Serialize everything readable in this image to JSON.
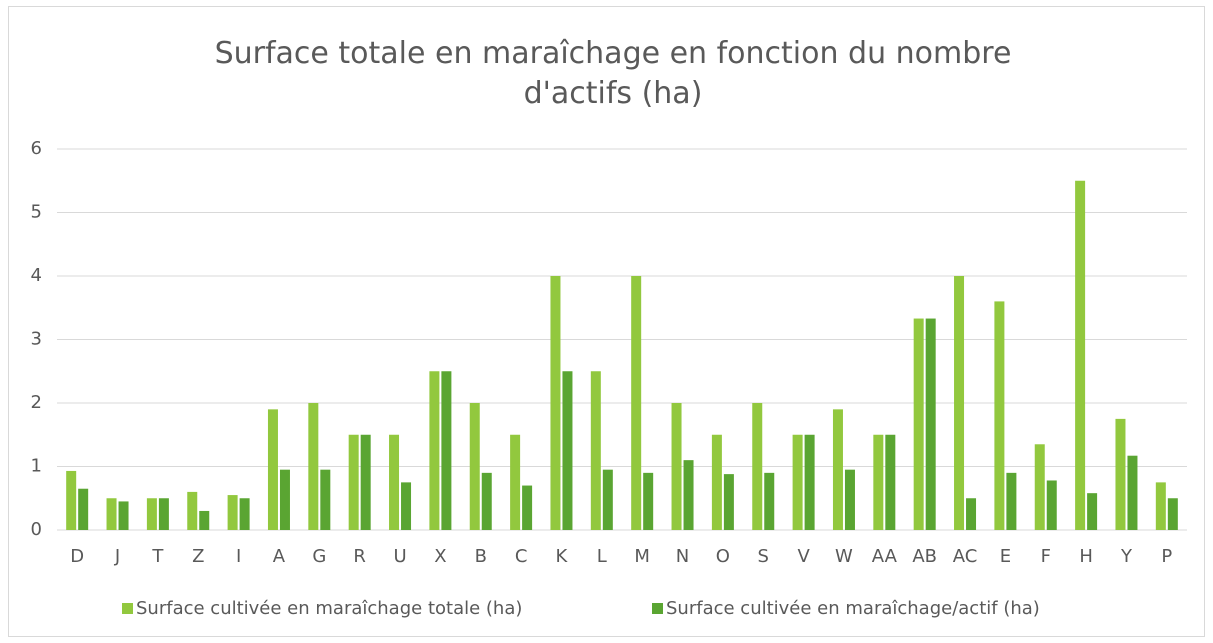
{
  "chart_data": {
    "type": "bar",
    "title": "Surface totale en maraîchage en fonction du nombre d'actifs (ha)",
    "categories": [
      "D",
      "J",
      "T",
      "Z",
      "I",
      "A",
      "G",
      "R",
      "U",
      "X",
      "B",
      "C",
      "K",
      "L",
      "M",
      "N",
      "O",
      "S",
      "V",
      "W",
      "AA",
      "AB",
      "AC",
      "E",
      "F",
      "H",
      "Y",
      "P"
    ],
    "series": [
      {
        "name": "Surface cultivée en maraîchage totale (ha)",
        "color": "#92c83e",
        "values": [
          0.93,
          0.5,
          0.5,
          0.6,
          0.55,
          1.9,
          2,
          1.5,
          1.5,
          2.5,
          2,
          1.5,
          4,
          2.5,
          4,
          2,
          1.5,
          2,
          1.5,
          1.9,
          1.5,
          3.33,
          4,
          3.6,
          1.35,
          5.5,
          1.75,
          0.75
        ]
      },
      {
        "name": "Surface cultivée en maraîchage/actif (ha)",
        "color": "#5aa532",
        "values": [
          0.65,
          0.45,
          0.5,
          0.3,
          0.5,
          0.95,
          0.95,
          1.5,
          0.75,
          2.5,
          0.9,
          0.7,
          2.5,
          0.95,
          0.9,
          1.1,
          0.88,
          0.9,
          1.5,
          0.95,
          1.5,
          3.33,
          0.5,
          0.9,
          0.78,
          0.58,
          1.17,
          0.5
        ]
      }
    ],
    "ylim": [
      0,
      6
    ],
    "yticks": [
      0,
      1,
      2,
      3,
      4,
      5,
      6
    ],
    "grid": true,
    "legend": "bottom"
  }
}
